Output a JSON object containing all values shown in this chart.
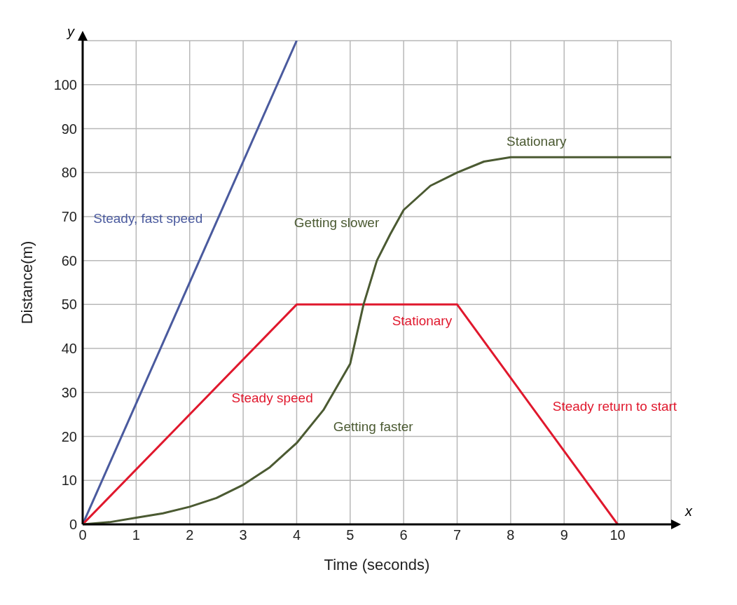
{
  "chart_data": {
    "type": "line",
    "xlabel": "Time (seconds)",
    "ylabel": "Distance(m)",
    "xlim": [
      0,
      11
    ],
    "ylim": [
      0,
      110
    ],
    "xticks": [
      0,
      1,
      2,
      3,
      4,
      5,
      6,
      7,
      8,
      9,
      10
    ],
    "yticks": [
      0,
      10,
      20,
      30,
      40,
      50,
      60,
      70,
      80,
      90,
      100
    ],
    "grid": true,
    "marker": "none",
    "line_style": "solid",
    "series": [
      {
        "color": "#4a5a9e",
        "x": [
          0,
          4
        ],
        "values": [
          0,
          110
        ]
      },
      {
        "color": "#e0182d",
        "x": [
          0,
          4,
          7,
          10
        ],
        "values": [
          0,
          50,
          50,
          0
        ]
      },
      {
        "color": "#4b5a32",
        "x": [
          0,
          0.5,
          1,
          1.5,
          2,
          2.5,
          3,
          3.5,
          4,
          4.5,
          5,
          5.25,
          5.5,
          5.75,
          6,
          6.5,
          7,
          7.5,
          8,
          9,
          10,
          11
        ],
        "values": [
          0,
          0.5,
          1.5,
          2.5,
          4,
          6,
          9,
          13,
          18.5,
          26,
          36.5,
          50,
          60,
          66,
          71.5,
          77,
          80,
          82.5,
          83.5,
          83.5,
          83.5,
          83.5
        ]
      }
    ],
    "annotations": [
      "x",
      "y",
      {
        "text": "Steady, fast speed",
        "x": 2.4,
        "y": 66
      },
      {
        "text": "Steady speed",
        "x": 2.6,
        "y": 32.5
      },
      {
        "text": "Getting faster",
        "x": 4.5,
        "y": 26
      },
      {
        "text": "Getting slower",
        "x": 5.7,
        "y": 65
      },
      {
        "text": "Stationary",
        "x": 5.6,
        "y": 50
      },
      {
        "text": "Stationary",
        "x": 9.2,
        "y": 83.5
      },
      {
        "text": "Steady return to start",
        "x": 8.6,
        "y": 23.3
      }
    ]
  }
}
